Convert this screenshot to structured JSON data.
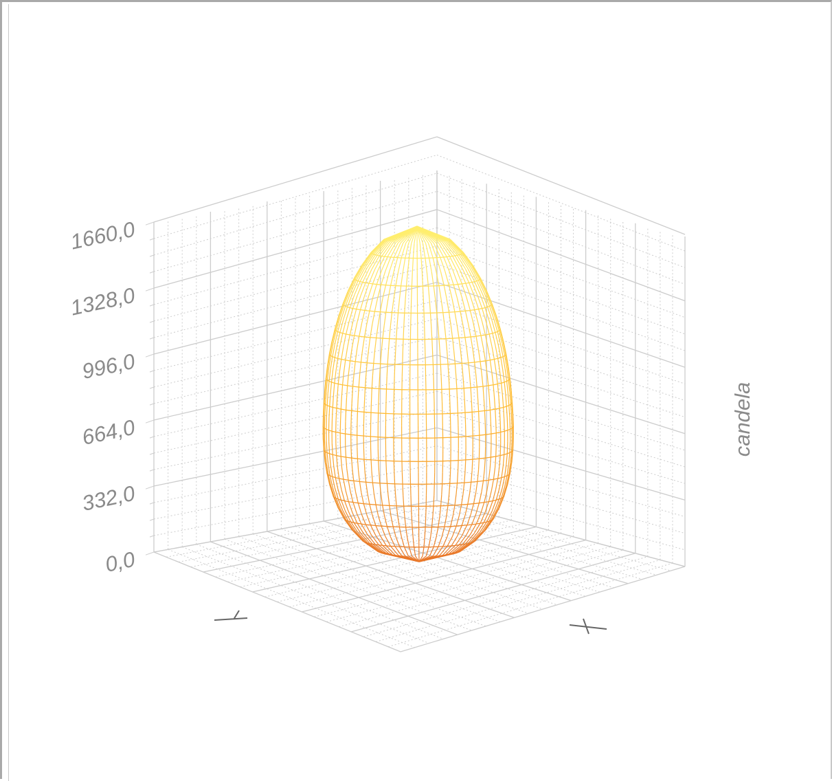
{
  "chart_data": {
    "type": "surface3d",
    "title": "",
    "zlabel": "candela",
    "xlabel": "X",
    "ylabel": "Y",
    "z_ticks": [
      "0,0",
      "332,0",
      "664,0",
      "996,0",
      "1328,0",
      "1660,0"
    ],
    "z_range": [
      0,
      1660
    ],
    "peak_value": 1660,
    "shape": "ellipsoid",
    "grid": true,
    "colors": {
      "bottom": "#e8762a",
      "middle": "#ffbb33",
      "top": "#fff070",
      "grid": "#cccccc",
      "tick_text": "#8a8a8a"
    }
  }
}
